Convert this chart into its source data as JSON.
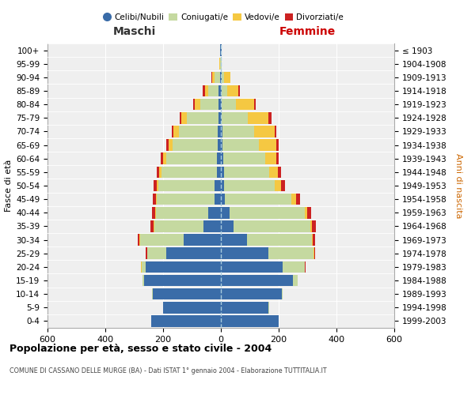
{
  "age_groups": [
    "0-4",
    "5-9",
    "10-14",
    "15-19",
    "20-24",
    "25-29",
    "30-34",
    "35-39",
    "40-44",
    "45-49",
    "50-54",
    "55-59",
    "60-64",
    "65-69",
    "70-74",
    "75-79",
    "80-84",
    "85-89",
    "90-94",
    "95-99",
    "100+"
  ],
  "birth_years": [
    "1999-2003",
    "1994-1998",
    "1989-1993",
    "1984-1988",
    "1979-1983",
    "1974-1978",
    "1969-1973",
    "1964-1968",
    "1959-1963",
    "1954-1958",
    "1949-1953",
    "1944-1948",
    "1939-1943",
    "1934-1938",
    "1929-1933",
    "1924-1928",
    "1919-1923",
    "1914-1918",
    "1909-1913",
    "1904-1908",
    "≤ 1903"
  ],
  "male_celibe": [
    240,
    200,
    235,
    265,
    260,
    190,
    130,
    60,
    45,
    22,
    22,
    15,
    15,
    12,
    10,
    8,
    7,
    8,
    4,
    1,
    2
  ],
  "male_coniugato": [
    0,
    1,
    2,
    5,
    15,
    65,
    150,
    170,
    180,
    200,
    195,
    190,
    175,
    155,
    135,
    110,
    65,
    35,
    18,
    3,
    1
  ],
  "male_vedovo": [
    0,
    0,
    0,
    0,
    1,
    1,
    2,
    3,
    3,
    4,
    5,
    8,
    10,
    15,
    20,
    20,
    18,
    12,
    8,
    1,
    0
  ],
  "male_divorziato": [
    0,
    0,
    0,
    0,
    1,
    3,
    5,
    10,
    10,
    10,
    10,
    10,
    8,
    8,
    5,
    5,
    5,
    8,
    2,
    0,
    0
  ],
  "female_nubile": [
    200,
    165,
    210,
    250,
    215,
    165,
    90,
    45,
    30,
    15,
    12,
    10,
    8,
    6,
    5,
    3,
    3,
    3,
    2,
    1,
    2
  ],
  "female_coniugata": [
    0,
    1,
    3,
    15,
    75,
    155,
    225,
    265,
    260,
    230,
    175,
    158,
    145,
    125,
    110,
    90,
    50,
    20,
    8,
    1,
    0
  ],
  "female_vedova": [
    0,
    0,
    0,
    0,
    1,
    2,
    3,
    5,
    8,
    15,
    20,
    30,
    40,
    60,
    70,
    72,
    62,
    38,
    22,
    2,
    1
  ],
  "female_divorziata": [
    0,
    0,
    0,
    0,
    1,
    3,
    8,
    15,
    15,
    15,
    15,
    10,
    8,
    8,
    8,
    10,
    5,
    5,
    2,
    0,
    0
  ],
  "color_celibe": "#3a6ca8",
  "color_coniugato": "#c5d9a0",
  "color_vedovo": "#f5c842",
  "color_divorziato": "#cc2222",
  "legend_labels": [
    "Celibi/Nubili",
    "Coniugati/e",
    "Vedovi/e",
    "Divorziati/e"
  ],
  "xlim_left": -600,
  "xlim_right": 600,
  "xticks": [
    -600,
    -400,
    -200,
    0,
    200,
    400,
    600
  ],
  "xticklabels": [
    "600",
    "400",
    "200",
    "0",
    "200",
    "400",
    "600"
  ],
  "title": "Popolazione per età, sesso e stato civile - 2004",
  "subtitle": "COMUNE DI CASSANO DELLE MURGE (BA) - Dati ISTAT 1° gennaio 2004 - Elaborazione TUTTITALIA.IT",
  "ylabel_left": "Fasce di età",
  "ylabel_right": "Anni di nascita",
  "label_maschi": "Maschi",
  "label_femmine": "Femmine",
  "bg_color": "#efefef",
  "bar_height": 0.85
}
